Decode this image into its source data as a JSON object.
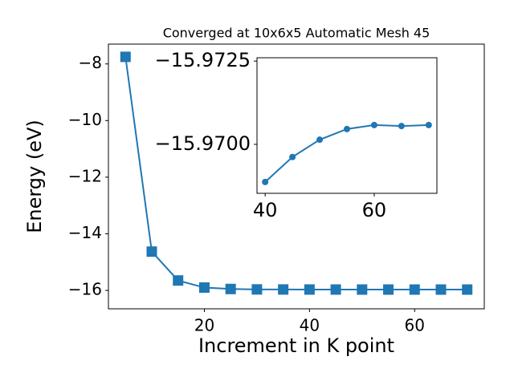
{
  "chart_data": [
    {
      "type": "line",
      "title": "Converged at 10x6x5 Automatic Mesh 45",
      "x_label": "Increment in K point",
      "y_label": "Energy (eV)",
      "x": [
        5,
        10,
        15,
        20,
        25,
        30,
        35,
        40,
        45,
        50,
        55,
        60,
        65,
        70
      ],
      "series": [
        {
          "color": "#1f77b4",
          "marker": "square",
          "values": [
            -7.75,
            -14.63,
            -15.65,
            -15.9,
            -15.95,
            -15.965,
            -15.967,
            -15.96887,
            -15.96962,
            -15.97014,
            -15.97046,
            -15.97058,
            -15.97055,
            -15.97058
          ]
        }
      ],
      "xlim": [
        1.75,
        73.25
      ],
      "ylim": [
        -16.65,
        -7.3
      ],
      "xticks": [
        20,
        40,
        60
      ],
      "yticks": [
        {
          "value": -16,
          "label": "−16"
        },
        {
          "value": -14,
          "label": "−14"
        },
        {
          "value": -12,
          "label": "−12"
        },
        {
          "value": -10,
          "label": "−10"
        },
        {
          "value": -8,
          "label": "−8"
        }
      ]
    },
    {
      "type": "line",
      "x": [
        40,
        45,
        50,
        55,
        60,
        65,
        70
      ],
      "series": [
        {
          "color": "#1f77b4",
          "marker": "circle",
          "values": [
            -15.96887,
            -15.96962,
            -15.97014,
            -15.97046,
            -15.97058,
            -15.97055,
            -15.97058
          ]
        }
      ],
      "xlim": [
        38.5,
        71.5
      ],
      "ylim": [
        -15.96853,
        -15.9726
      ],
      "xticks": [
        40,
        60
      ],
      "yticks": [
        {
          "value": -15.9725,
          "label": "−15.9725"
        },
        {
          "value": -15.97,
          "label": "−15.9700"
        }
      ]
    }
  ]
}
